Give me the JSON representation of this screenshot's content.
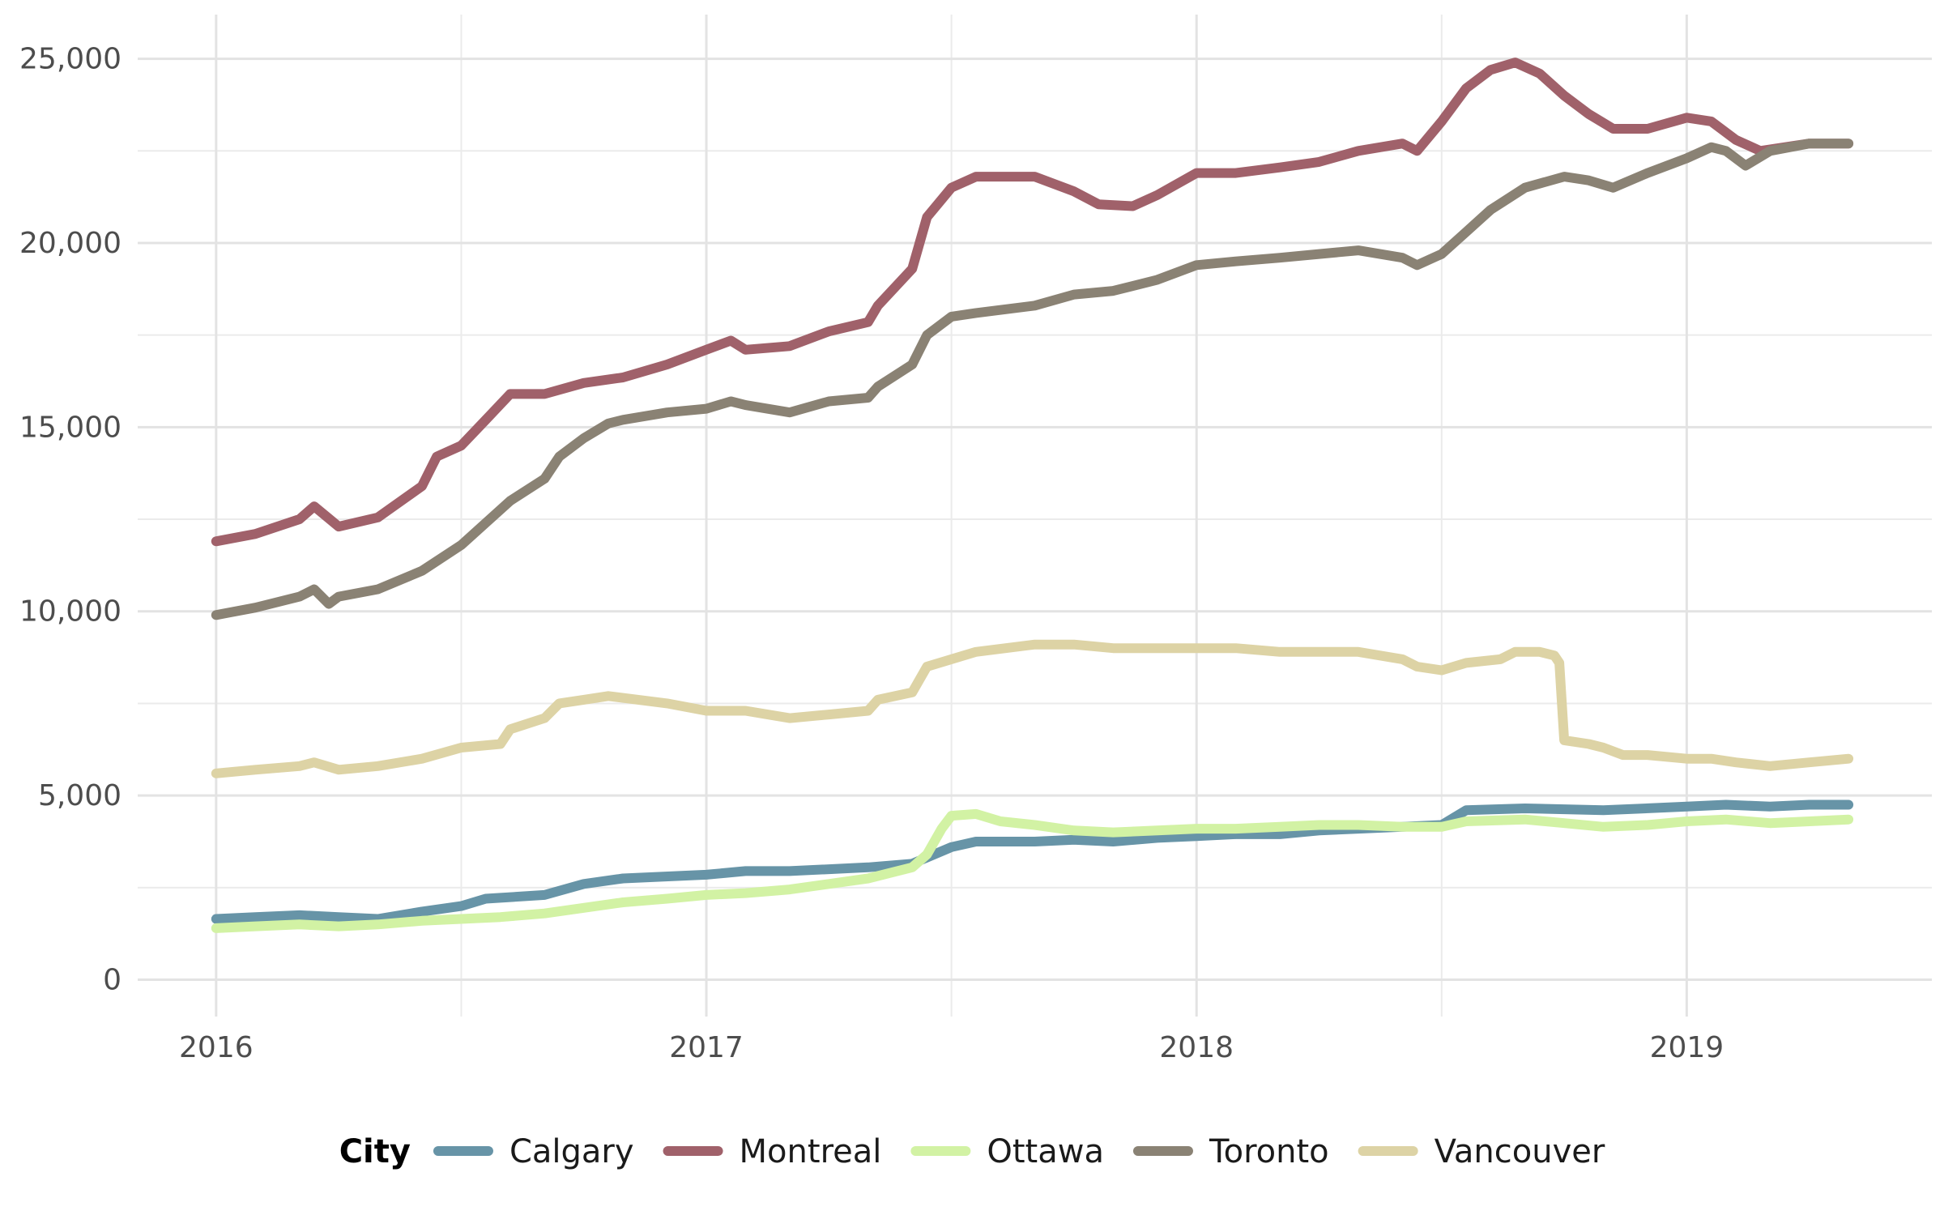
{
  "chart_data": {
    "type": "line",
    "title": "",
    "xlabel": "",
    "ylabel": "",
    "xlim": [
      2015.84,
      2019.5
    ],
    "ylim": [
      -1000,
      26200
    ],
    "x_ticks": [
      2016,
      2017,
      2018,
      2019
    ],
    "x_tick_labels": [
      "2016",
      "2017",
      "2018",
      "2019"
    ],
    "x_minor_ticks": [
      2016.5,
      2017.5,
      2018.5
    ],
    "y_ticks": [
      0,
      5000,
      10000,
      15000,
      20000,
      25000
    ],
    "y_tick_labels": [
      "0",
      "5,000",
      "10,000",
      "15,000",
      "20,000",
      "25,000"
    ],
    "y_minor_ticks": [
      2500,
      7500,
      12500,
      17500,
      22500
    ],
    "grid": true,
    "legend": {
      "title": "City",
      "position": "bottom"
    },
    "series": [
      {
        "name": "Calgary",
        "color": "#6794a7",
        "points": [
          [
            2016.0,
            1650
          ],
          [
            2016.08,
            1700
          ],
          [
            2016.17,
            1750
          ],
          [
            2016.25,
            1700
          ],
          [
            2016.33,
            1650
          ],
          [
            2016.42,
            1850
          ],
          [
            2016.5,
            2000
          ],
          [
            2016.55,
            2200
          ],
          [
            2016.67,
            2300
          ],
          [
            2016.75,
            2600
          ],
          [
            2016.83,
            2750
          ],
          [
            2017.0,
            2850
          ],
          [
            2017.08,
            2950
          ],
          [
            2017.17,
            2950
          ],
          [
            2017.33,
            3050
          ],
          [
            2017.42,
            3150
          ],
          [
            2017.5,
            3600
          ],
          [
            2017.55,
            3750
          ],
          [
            2017.67,
            3750
          ],
          [
            2017.75,
            3800
          ],
          [
            2017.83,
            3750
          ],
          [
            2017.92,
            3850
          ],
          [
            2018.0,
            3900
          ],
          [
            2018.08,
            3950
          ],
          [
            2018.17,
            3950
          ],
          [
            2018.25,
            4050
          ],
          [
            2018.33,
            4100
          ],
          [
            2018.42,
            4150
          ],
          [
            2018.5,
            4200
          ],
          [
            2018.55,
            4600
          ],
          [
            2018.67,
            4650
          ],
          [
            2018.83,
            4600
          ],
          [
            2019.0,
            4700
          ],
          [
            2019.08,
            4750
          ],
          [
            2019.17,
            4700
          ],
          [
            2019.25,
            4750
          ],
          [
            2019.33,
            4750
          ]
        ]
      },
      {
        "name": "Montreal",
        "color": "#a0616a",
        "points": [
          [
            2016.0,
            11900
          ],
          [
            2016.08,
            12100
          ],
          [
            2016.17,
            12500
          ],
          [
            2016.2,
            12850
          ],
          [
            2016.25,
            12300
          ],
          [
            2016.33,
            12550
          ],
          [
            2016.42,
            13400
          ],
          [
            2016.45,
            14200
          ],
          [
            2016.5,
            14500
          ],
          [
            2016.55,
            15200
          ],
          [
            2016.6,
            15900
          ],
          [
            2016.67,
            15900
          ],
          [
            2016.75,
            16200
          ],
          [
            2016.83,
            16350
          ],
          [
            2016.92,
            16700
          ],
          [
            2017.0,
            17100
          ],
          [
            2017.05,
            17350
          ],
          [
            2017.08,
            17100
          ],
          [
            2017.17,
            17200
          ],
          [
            2017.25,
            17600
          ],
          [
            2017.33,
            17850
          ],
          [
            2017.35,
            18300
          ],
          [
            2017.42,
            19300
          ],
          [
            2017.45,
            20700
          ],
          [
            2017.5,
            21500
          ],
          [
            2017.55,
            21800
          ],
          [
            2017.67,
            21800
          ],
          [
            2017.75,
            21400
          ],
          [
            2017.8,
            21050
          ],
          [
            2017.87,
            21000
          ],
          [
            2017.92,
            21300
          ],
          [
            2018.0,
            21900
          ],
          [
            2018.08,
            21900
          ],
          [
            2018.17,
            22050
          ],
          [
            2018.25,
            22200
          ],
          [
            2018.33,
            22500
          ],
          [
            2018.42,
            22700
          ],
          [
            2018.45,
            22500
          ],
          [
            2018.5,
            23300
          ],
          [
            2018.55,
            24200
          ],
          [
            2018.6,
            24700
          ],
          [
            2018.65,
            24900
          ],
          [
            2018.7,
            24600
          ],
          [
            2018.75,
            24000
          ],
          [
            2018.8,
            23500
          ],
          [
            2018.85,
            23100
          ],
          [
            2018.92,
            23100
          ],
          [
            2019.0,
            23400
          ],
          [
            2019.05,
            23300
          ],
          [
            2019.1,
            22800
          ],
          [
            2019.15,
            22500
          ],
          [
            2019.25,
            22700
          ],
          [
            2019.33,
            22700
          ]
        ]
      },
      {
        "name": "Ottawa",
        "color": "#d2f2a4",
        "points": [
          [
            2016.0,
            1400
          ],
          [
            2016.08,
            1450
          ],
          [
            2016.17,
            1500
          ],
          [
            2016.25,
            1450
          ],
          [
            2016.33,
            1500
          ],
          [
            2016.42,
            1600
          ],
          [
            2016.5,
            1650
          ],
          [
            2016.58,
            1700
          ],
          [
            2016.67,
            1800
          ],
          [
            2016.75,
            1950
          ],
          [
            2016.83,
            2100
          ],
          [
            2016.92,
            2200
          ],
          [
            2017.0,
            2300
          ],
          [
            2017.08,
            2350
          ],
          [
            2017.17,
            2450
          ],
          [
            2017.25,
            2600
          ],
          [
            2017.33,
            2750
          ],
          [
            2017.42,
            3050
          ],
          [
            2017.45,
            3400
          ],
          [
            2017.48,
            4100
          ],
          [
            2017.5,
            4450
          ],
          [
            2017.55,
            4500
          ],
          [
            2017.6,
            4300
          ],
          [
            2017.67,
            4200
          ],
          [
            2017.75,
            4050
          ],
          [
            2017.83,
            4000
          ],
          [
            2017.92,
            4050
          ],
          [
            2018.0,
            4100
          ],
          [
            2018.08,
            4100
          ],
          [
            2018.17,
            4150
          ],
          [
            2018.25,
            4200
          ],
          [
            2018.33,
            4200
          ],
          [
            2018.42,
            4150
          ],
          [
            2018.5,
            4150
          ],
          [
            2018.55,
            4300
          ],
          [
            2018.67,
            4350
          ],
          [
            2018.75,
            4250
          ],
          [
            2018.83,
            4150
          ],
          [
            2018.92,
            4200
          ],
          [
            2019.0,
            4300
          ],
          [
            2019.08,
            4350
          ],
          [
            2019.17,
            4250
          ],
          [
            2019.25,
            4300
          ],
          [
            2019.33,
            4350
          ]
        ]
      },
      {
        "name": "Toronto",
        "color": "#8a8274",
        "points": [
          [
            2016.0,
            9900
          ],
          [
            2016.08,
            10100
          ],
          [
            2016.17,
            10400
          ],
          [
            2016.2,
            10600
          ],
          [
            2016.23,
            10200
          ],
          [
            2016.25,
            10400
          ],
          [
            2016.33,
            10600
          ],
          [
            2016.42,
            11100
          ],
          [
            2016.5,
            11800
          ],
          [
            2016.55,
            12400
          ],
          [
            2016.6,
            13000
          ],
          [
            2016.67,
            13600
          ],
          [
            2016.7,
            14200
          ],
          [
            2016.75,
            14700
          ],
          [
            2016.8,
            15100
          ],
          [
            2016.83,
            15200
          ],
          [
            2016.92,
            15400
          ],
          [
            2017.0,
            15500
          ],
          [
            2017.05,
            15700
          ],
          [
            2017.08,
            15600
          ],
          [
            2017.17,
            15400
          ],
          [
            2017.25,
            15700
          ],
          [
            2017.33,
            15800
          ],
          [
            2017.35,
            16100
          ],
          [
            2017.42,
            16700
          ],
          [
            2017.45,
            17500
          ],
          [
            2017.5,
            18000
          ],
          [
            2017.55,
            18100
          ],
          [
            2017.67,
            18300
          ],
          [
            2017.75,
            18600
          ],
          [
            2017.83,
            18700
          ],
          [
            2017.92,
            19000
          ],
          [
            2018.0,
            19400
          ],
          [
            2018.08,
            19500
          ],
          [
            2018.17,
            19600
          ],
          [
            2018.25,
            19700
          ],
          [
            2018.33,
            19800
          ],
          [
            2018.42,
            19600
          ],
          [
            2018.45,
            19400
          ],
          [
            2018.5,
            19700
          ],
          [
            2018.55,
            20300
          ],
          [
            2018.6,
            20900
          ],
          [
            2018.67,
            21500
          ],
          [
            2018.75,
            21800
          ],
          [
            2018.8,
            21700
          ],
          [
            2018.85,
            21500
          ],
          [
            2018.92,
            21900
          ],
          [
            2019.0,
            22300
          ],
          [
            2019.05,
            22600
          ],
          [
            2019.08,
            22500
          ],
          [
            2019.12,
            22100
          ],
          [
            2019.17,
            22500
          ],
          [
            2019.25,
            22700
          ],
          [
            2019.33,
            22700
          ]
        ]
      },
      {
        "name": "Vancouver",
        "color": "#ddd3a5",
        "points": [
          [
            2016.0,
            5600
          ],
          [
            2016.08,
            5700
          ],
          [
            2016.17,
            5800
          ],
          [
            2016.2,
            5900
          ],
          [
            2016.25,
            5700
          ],
          [
            2016.33,
            5800
          ],
          [
            2016.42,
            6000
          ],
          [
            2016.5,
            6300
          ],
          [
            2016.58,
            6400
          ],
          [
            2016.6,
            6800
          ],
          [
            2016.67,
            7100
          ],
          [
            2016.7,
            7500
          ],
          [
            2016.75,
            7600
          ],
          [
            2016.8,
            7700
          ],
          [
            2016.83,
            7650
          ],
          [
            2016.92,
            7500
          ],
          [
            2017.0,
            7300
          ],
          [
            2017.08,
            7300
          ],
          [
            2017.17,
            7100
          ],
          [
            2017.25,
            7200
          ],
          [
            2017.33,
            7300
          ],
          [
            2017.35,
            7600
          ],
          [
            2017.42,
            7800
          ],
          [
            2017.45,
            8500
          ],
          [
            2017.5,
            8700
          ],
          [
            2017.55,
            8900
          ],
          [
            2017.67,
            9100
          ],
          [
            2017.75,
            9100
          ],
          [
            2017.83,
            9000
          ],
          [
            2017.92,
            9000
          ],
          [
            2018.0,
            9000
          ],
          [
            2018.08,
            9000
          ],
          [
            2018.17,
            8900
          ],
          [
            2018.25,
            8900
          ],
          [
            2018.33,
            8900
          ],
          [
            2018.42,
            8700
          ],
          [
            2018.45,
            8500
          ],
          [
            2018.5,
            8400
          ],
          [
            2018.55,
            8600
          ],
          [
            2018.62,
            8700
          ],
          [
            2018.65,
            8900
          ],
          [
            2018.7,
            8900
          ],
          [
            2018.73,
            8800
          ],
          [
            2018.74,
            8600
          ],
          [
            2018.75,
            6500
          ],
          [
            2018.8,
            6400
          ],
          [
            2018.83,
            6300
          ],
          [
            2018.87,
            6100
          ],
          [
            2018.92,
            6100
          ],
          [
            2019.0,
            6000
          ],
          [
            2019.05,
            6000
          ],
          [
            2019.1,
            5900
          ],
          [
            2019.17,
            5800
          ],
          [
            2019.25,
            5900
          ],
          [
            2019.33,
            6000
          ]
        ]
      }
    ]
  }
}
